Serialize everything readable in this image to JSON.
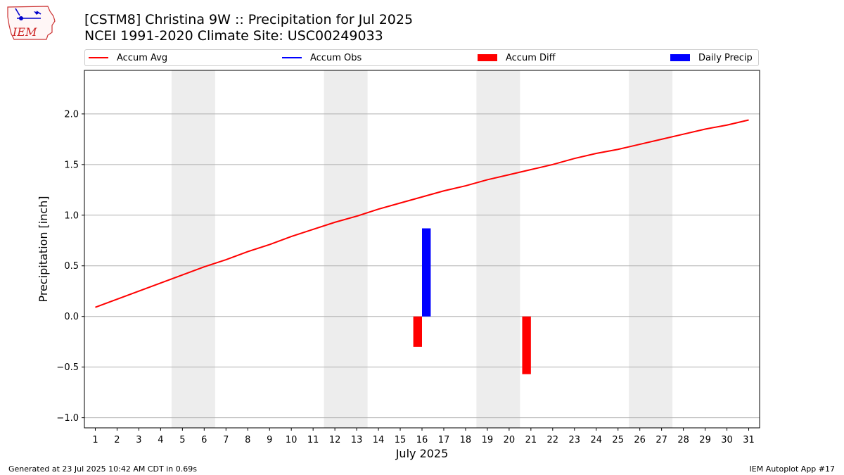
{
  "header": {
    "title_line1": "[CSTM8] Christina 9W :: Precipitation for Jul 2025",
    "title_line2": "NCEI 1991-2020 Climate Site: USC00249033"
  },
  "logo": {
    "text": "IEM"
  },
  "footer": {
    "left": "Generated at 23 Jul 2025 10:42 AM CDT in 0.69s",
    "right": "IEM Autoplot App #17"
  },
  "legend": {
    "items": [
      {
        "label": "Accum Avg",
        "kind": "line",
        "color": "#ff0000"
      },
      {
        "label": "Accum Obs",
        "kind": "line",
        "color": "#0000ff"
      },
      {
        "label": "Accum Diff",
        "kind": "patch",
        "color": "#ff0000"
      },
      {
        "label": "Daily Precip",
        "kind": "patch",
        "color": "#0000ff"
      }
    ]
  },
  "chart_data": {
    "type": "bar",
    "xlabel": "July 2025",
    "ylabel": "Precipitation [inch]",
    "xlim": [
      0.5,
      31.5
    ],
    "ylim": [
      -1.1,
      2.43
    ],
    "yticks": [
      -1.0,
      -0.5,
      0.0,
      0.5,
      1.0,
      1.5,
      2.0
    ],
    "ytick_labels": [
      "−1.0",
      "−0.5",
      "0.0",
      "0.5",
      "1.0",
      "1.5",
      "2.0"
    ],
    "xticks": [
      1,
      2,
      3,
      4,
      5,
      6,
      7,
      8,
      9,
      10,
      11,
      12,
      13,
      14,
      15,
      16,
      17,
      18,
      19,
      20,
      21,
      22,
      23,
      24,
      25,
      26,
      27,
      28,
      29,
      30,
      31
    ],
    "grid": "y",
    "weekend_shading": [
      [
        4.5,
        6.5
      ],
      [
        11.5,
        13.5
      ],
      [
        18.5,
        20.5
      ],
      [
        25.5,
        27.5
      ]
    ],
    "series": [
      {
        "name": "Accum Avg",
        "kind": "line",
        "color": "#ff0000",
        "x": [
          1,
          2,
          3,
          4,
          5,
          6,
          7,
          8,
          9,
          10,
          11,
          12,
          13,
          14,
          15,
          16,
          17,
          18,
          19,
          20,
          21,
          22,
          23,
          24,
          25,
          26,
          27,
          28,
          29,
          30,
          31
        ],
        "values": [
          0.09,
          0.17,
          0.25,
          0.33,
          0.41,
          0.49,
          0.56,
          0.64,
          0.71,
          0.79,
          0.86,
          0.93,
          0.99,
          1.06,
          1.12,
          1.18,
          1.24,
          1.29,
          1.35,
          1.4,
          1.45,
          1.5,
          1.56,
          1.61,
          1.65,
          1.7,
          1.75,
          1.8,
          1.85,
          1.89,
          1.94
        ]
      },
      {
        "name": "Accum Diff",
        "kind": "bar",
        "color": "#ff0000",
        "x": [
          15.8,
          20.8
        ],
        "values": [
          -0.3,
          -0.57
        ]
      },
      {
        "name": "Daily Precip",
        "kind": "bar",
        "color": "#0000ff",
        "x": [
          16.2
        ],
        "values": [
          0.87
        ]
      }
    ]
  }
}
